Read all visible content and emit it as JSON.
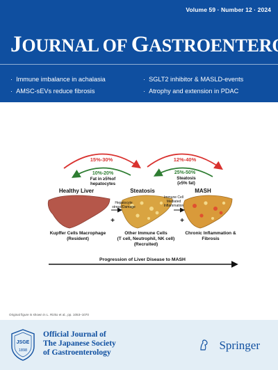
{
  "header": {
    "volume": "Volume 59 · Number 12 · 2024",
    "title_parts": [
      "J",
      "OURNAL OF ",
      "G",
      "ASTROENTEROLOGY"
    ],
    "highlights": [
      "Immune imbalance in achalasia",
      "SGLT2 inhibitor & MASLD-events",
      "AMSC-sEVs reduce fibrosis",
      "Atrophy and extension in PDAC"
    ],
    "bullet": "·"
  },
  "figure": {
    "arrows": {
      "red_left": "15%-30%",
      "green_left": "10%-20%",
      "green_left_sub1": "Fat in ≥5%of",
      "green_left_sub2": "hepatocytes",
      "red_right": "12%-40%",
      "green_right": "25%-50%",
      "green_right_sub1": "Steatosis",
      "green_right_sub2": "(≥5% fat)"
    },
    "stages": [
      "Healthy Liver",
      "Steatosis",
      "MASH"
    ],
    "transitions": {
      "left1": "Hepatocyte",
      "left2": "stress/Damage",
      "right1": "Immune Cell",
      "right2": "Mediated",
      "right3": "Inflammation"
    },
    "plus": "+",
    "cells": {
      "left1": "Kupffer Cells Macrophage",
      "left2": "(Resident)",
      "mid1": "Other Immune Cells",
      "mid2": "(T cell, Neutrophil, NK cell)",
      "mid3": "(Recruited)",
      "right1": "Chronic Inflammation &",
      "right2": "Fibrosis"
    },
    "progression": "Progression of Liver Disease to MASH",
    "credit": "Original figure is shown in L. Rizko et al., pp. 1053–1070",
    "colors": {
      "red": "#d9322f",
      "green": "#2e7d32",
      "liver_healthy": "#b5574a",
      "liver_fatty": "#d9a441"
    }
  },
  "footer": {
    "seal_text": "JSGE",
    "seal_year": "1898",
    "official": [
      "Official Journal of",
      "The Japanese Society",
      "of Gastroenterology"
    ],
    "publisher": "Springer"
  }
}
